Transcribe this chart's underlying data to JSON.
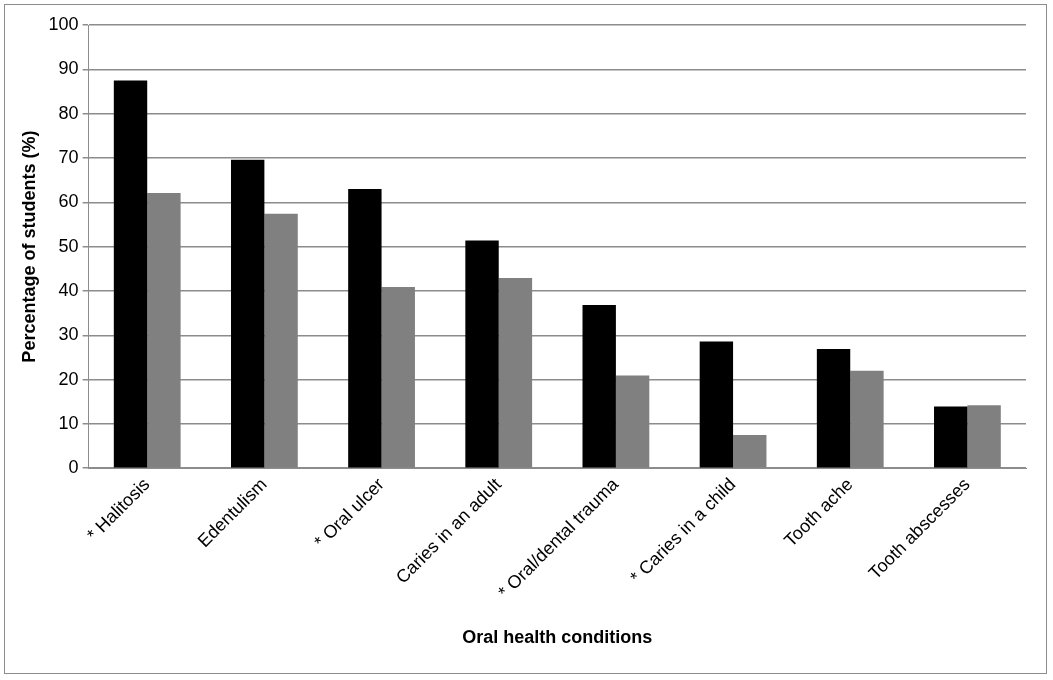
{
  "chart_data": {
    "type": "bar",
    "xlabel": "Oral health conditions",
    "ylabel": "Percentage of students (%)",
    "categories": [
      "* Halitosis",
      "Edentulism",
      "* Oral ulcer",
      "Caries in an adult",
      "* Oral/dental trauma",
      "* Caries in a child",
      "Tooth ache",
      "Tooth abscesses"
    ],
    "series": [
      {
        "color": "#000000",
        "values": [
          87.5,
          69.6,
          63.0,
          51.4,
          36.8,
          28.6,
          26.9,
          13.9
        ]
      },
      {
        "color": "#808080",
        "values": [
          62.1,
          57.4,
          40.9,
          42.9,
          20.9,
          7.5,
          22.0,
          14.2
        ]
      }
    ],
    "ylim": [
      0,
      100
    ],
    "yticks": [
      0,
      10,
      20,
      30,
      40,
      50,
      60,
      70,
      80,
      90,
      100
    ],
    "grid": "y",
    "legend": false
  }
}
